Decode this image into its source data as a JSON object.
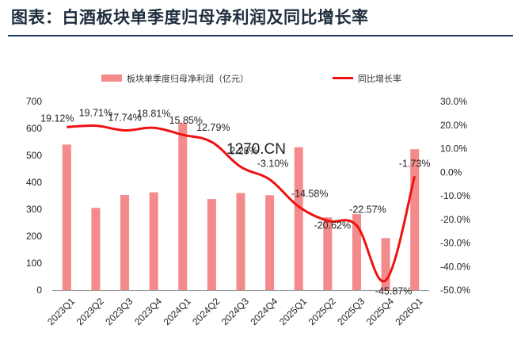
{
  "page": {
    "title": "图表：白酒板块单季度归母净利润及同比增长率"
  },
  "chart_data": {
    "type": "bar",
    "categories": [
      "2023Q1",
      "2023Q2",
      "2023Q3",
      "2023Q4",
      "2024Q1",
      "2024Q2",
      "2024Q3",
      "2024Q4",
      "2025Q1",
      "2025Q2",
      "2025Q3",
      "2025Q4",
      "2026Q1"
    ],
    "series": [
      {
        "name": "板块单季度归母净利润（亿元）",
        "kind": "bar",
        "axis": "left",
        "color": "#f48a8a",
        "values": [
          540,
          305,
          353,
          363,
          620,
          338,
          360,
          352,
          530,
          270,
          282,
          193,
          523
        ]
      },
      {
        "name": "同比增长率",
        "kind": "line",
        "axis": "right",
        "color": "#ee1111",
        "values": [
          19.12,
          19.71,
          17.74,
          18.81,
          15.85,
          12.79,
          2.28,
          -3.1,
          -14.58,
          -20.62,
          -22.57,
          -45.87,
          -1.73
        ],
        "labels": [
          "19.12%",
          "19.71%",
          "17.74%",
          "18.81%",
          "15.85%",
          "12.79%",
          "2.28%",
          "-3.10%",
          "-14.58%",
          "-20.62%",
          "-22.57%",
          "-45.87%",
          "-1.73%"
        ]
      }
    ],
    "y_left": {
      "min": 0,
      "max": 700,
      "step": 100,
      "ticks": [
        "0",
        "100",
        "200",
        "300",
        "400",
        "500",
        "600",
        "700"
      ]
    },
    "y_right": {
      "min": -50,
      "max": 30,
      "step": 10,
      "ticks": [
        "-50.0%",
        "-40.0%",
        "-30.0%",
        "-20.0%",
        "-10.0%",
        "0.0%",
        "10.0%",
        "20.0%",
        "30.0%"
      ]
    },
    "legend_position": "top",
    "grid": false,
    "watermark": "1270.CN"
  }
}
